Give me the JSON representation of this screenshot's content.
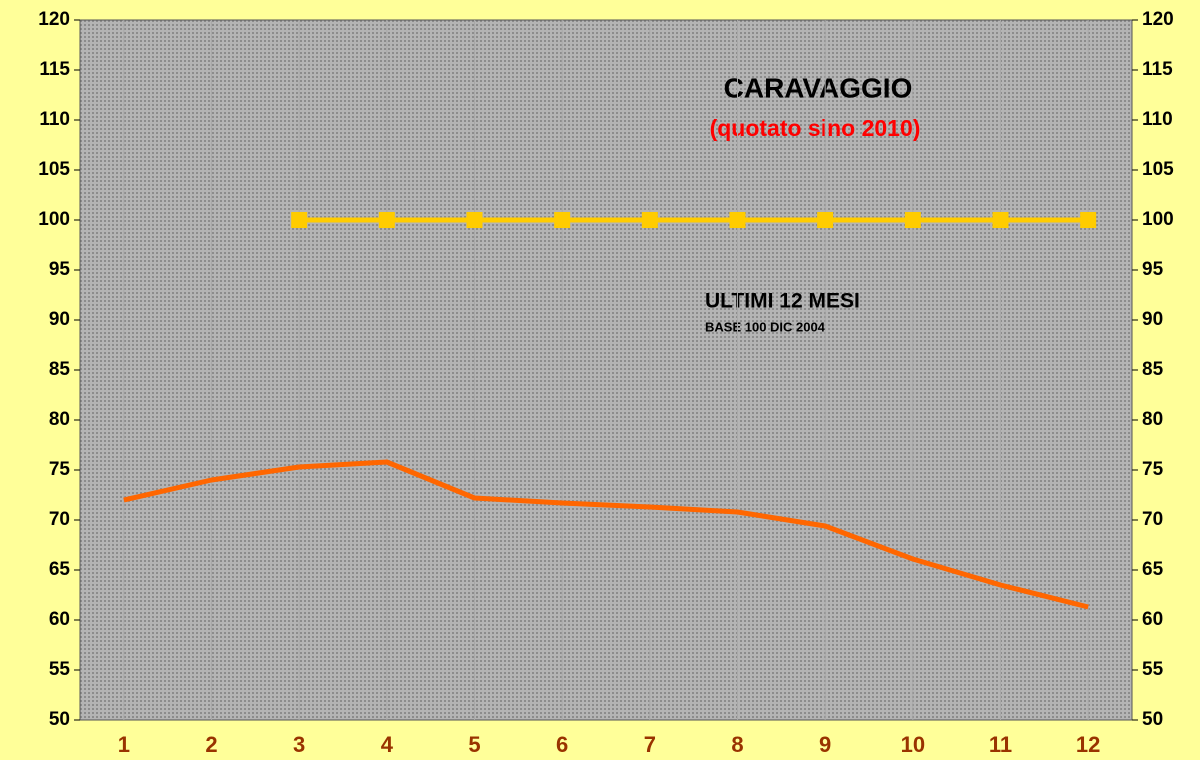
{
  "chart_data": {
    "type": "line",
    "title": "CARAVAGGIO",
    "subtitle": "(quotato sino 2010)",
    "annotations": [
      "ULTIMI 12 MESI",
      "BASE 100  DIC 2004"
    ],
    "categories": [
      "1",
      "2",
      "3",
      "4",
      "5",
      "6",
      "7",
      "8",
      "9",
      "10",
      "11",
      "12"
    ],
    "series": [
      {
        "name": "CARAVAGGIO",
        "color": "#ff6600",
        "marker": false,
        "values": [
          72,
          74,
          75.3,
          75.8,
          72.2,
          71.7,
          71.3,
          70.8,
          69.4,
          66.1,
          63.5,
          61.3
        ]
      },
      {
        "name": "BASE 100",
        "color": "#ffcc00",
        "marker": true,
        "values": [
          null,
          null,
          100,
          100,
          100,
          100,
          100,
          100,
          100,
          100,
          100,
          100
        ]
      }
    ],
    "ylim": [
      50,
      120
    ],
    "yticks": [
      50,
      55,
      60,
      65,
      70,
      75,
      80,
      85,
      90,
      95,
      100,
      105,
      110,
      115,
      120
    ],
    "y2lim": [
      50,
      120
    ],
    "y2ticks": [
      50,
      55,
      60,
      65,
      70,
      75,
      80,
      85,
      90,
      95,
      100,
      105,
      110,
      115,
      120
    ]
  }
}
